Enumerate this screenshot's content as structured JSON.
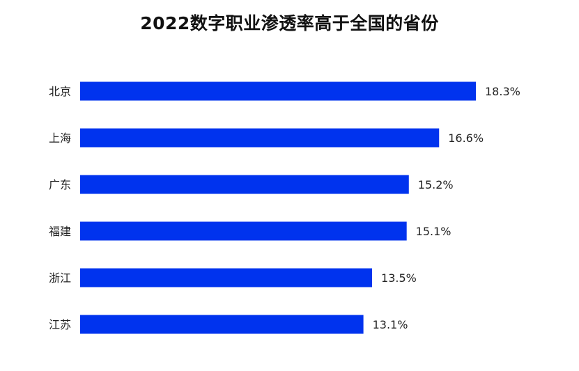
{
  "chart_data": {
    "type": "bar",
    "orientation": "horizontal",
    "title": "2022数字职业渗透率高于全国的省份",
    "categories": [
      "北京",
      "上海",
      "广东",
      "福建",
      "浙江",
      "江苏"
    ],
    "values": [
      18.3,
      16.6,
      15.2,
      15.1,
      13.5,
      13.1
    ],
    "value_labels": [
      "18.3%",
      "16.6%",
      "15.2%",
      "15.1%",
      "13.5%",
      "13.1%"
    ],
    "xlabel": "",
    "ylabel": "",
    "grid": false,
    "legend": "none",
    "bar_color": "#0033ee"
  }
}
